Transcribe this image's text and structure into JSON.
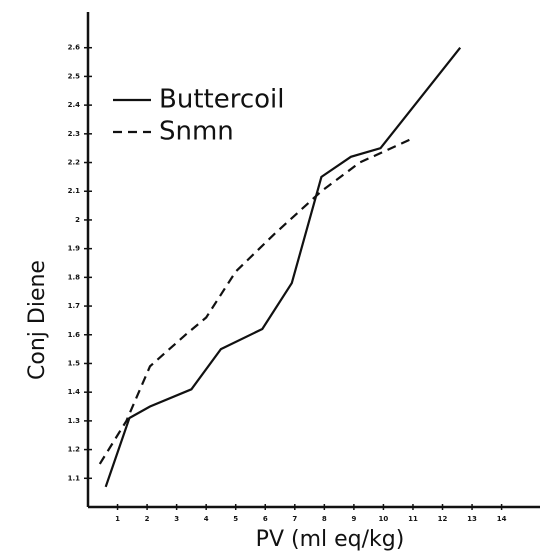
{
  "chart_data": {
    "type": "line",
    "ylabel": "Conj Diene",
    "xlabel": "PV (ml eq/kg)",
    "legend": "upper left",
    "series": [
      {
        "name": "Buttercoil",
        "color": "#111111",
        "style": "solid",
        "x": [
          0.6,
          1.4,
          2.1,
          3.5,
          4.5,
          5.9,
          6.9,
          7.9,
          8.9,
          9.9,
          12.6
        ],
        "values": [
          1.07,
          1.31,
          1.35,
          1.41,
          1.55,
          1.62,
          1.78,
          2.15,
          2.22,
          2.25,
          2.6
        ]
      },
      {
        "name": "Snmn",
        "color": "#111111",
        "style": "dashed",
        "x": [
          0.4,
          1.3,
          2.1,
          3.3,
          4.0,
          5.0,
          6.3,
          7.9,
          9.2,
          10.9
        ],
        "values": [
          1.15,
          1.3,
          1.49,
          1.6,
          1.66,
          1.82,
          1.95,
          2.1,
          2.2,
          2.28
        ]
      }
    ],
    "xlim": [
      0,
      15.3
    ],
    "xticks": [
      1,
      2,
      3,
      4,
      5,
      6,
      7,
      8,
      9,
      10,
      11,
      12,
      13,
      14
    ],
    "ylim": [
      1.0,
      2.7
    ],
    "yticks": [
      1.1,
      1.2,
      1.3,
      1.4,
      1.5,
      1.6,
      1.7,
      1.8,
      1.9,
      2.0,
      2.1,
      2.2,
      2.3,
      2.4,
      2.5,
      2.6
    ],
    "grid": false
  }
}
